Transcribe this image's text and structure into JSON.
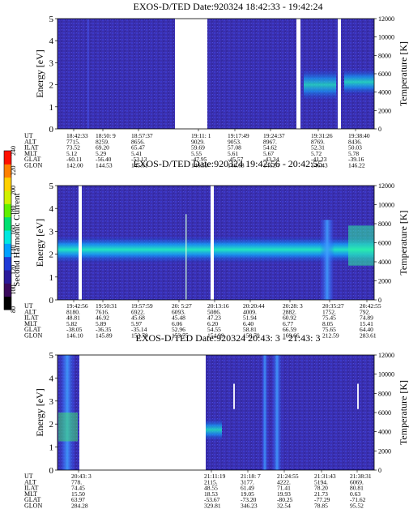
{
  "colorbar": {
    "title": "Second Harmonic Current",
    "ticks": [
      "80",
      "100",
      "120",
      "140",
      "160",
      "180",
      "200",
      "220",
      "240"
    ],
    "colors": [
      "#000000",
      "#3a0a5c",
      "#2a1a9a",
      "#1f3ad6",
      "#00a0ff",
      "#00e8e0",
      "#00e070",
      "#60f000",
      "#d0f000",
      "#ffd000",
      "#ff8000",
      "#ff1000"
    ]
  },
  "panels": [
    {
      "title": "EXOS-D/TED   Date:920324   18:42:33 - 19:42:24",
      "ylabel": "Energy [eV]",
      "y2label": "Temperature [K]",
      "yticks": [
        "0",
        "1",
        "2",
        "3",
        "4",
        "5"
      ],
      "y2ticks": [
        "0",
        "2000",
        "4000",
        "6000",
        "8000",
        "10000",
        "12000"
      ],
      "row_labels": [
        "UT",
        "ALT",
        "ILAT",
        "MLT",
        "GLAT",
        "GLON"
      ],
      "columns": [
        [
          "18:42:33",
          "7715.",
          "73.52",
          "5.12",
          "-60.11",
          "142.00"
        ],
        [
          "18:50: 9",
          "8259.",
          "69.20",
          "5.29",
          "-56.40",
          "144.53"
        ],
        [
          "18:57:37",
          "8656.",
          "65.47",
          "5.41",
          "-53.13",
          "145.61"
        ],
        [
          "19:11: 1",
          "9029.",
          "59.69",
          "5.55",
          "-47.95",
          "146.53"
        ],
        [
          "19:17:49",
          "9053.",
          "57.08",
          "5.61",
          "-45.57",
          "146.63"
        ],
        [
          "19:24:37",
          "8967.",
          "54.62",
          "5.67",
          "-43.34",
          "146.57"
        ],
        [
          "19:31:26",
          "8769.",
          "52.31",
          "5.72",
          "-41.23",
          "146.43"
        ],
        [
          "19:38:40",
          "8436.",
          "50.03",
          "5.78",
          "-39.16",
          "146.22"
        ]
      ]
    },
    {
      "title": "EXOS-D/TED   Date:920324   19:42:56 - 20:42:55",
      "ylabel": "Energy [eV]",
      "y2label": "Temperature [K]",
      "yticks": [
        "0",
        "1",
        "2",
        "3",
        "4",
        "5"
      ],
      "y2ticks": [
        "0",
        "2000",
        "4000",
        "6000",
        "8000",
        "10000",
        "12000"
      ],
      "row_labels": [
        "UT",
        "ALT",
        "ILAT",
        "MLT",
        "GLAT",
        "GLON"
      ],
      "columns": [
        [
          "19:42:56",
          "8180.",
          "48.81",
          "5.82",
          "-38.05",
          "146.10"
        ],
        [
          "19:50:31",
          "7616.",
          "46.92",
          "5.89",
          "-36.35",
          "145.89"
        ],
        [
          "19:57:59",
          "6922.",
          "45.68",
          "5.97",
          "-35.14",
          "153.78"
        ],
        [
          "20: 5:27",
          "6093.",
          "45.48",
          "6.06",
          "52.96",
          "153.75"
        ],
        [
          "20:13:16",
          "5086.",
          "47.23",
          "6.20",
          "54.55",
          "154.99"
        ],
        [
          "20:20:44",
          "4009.",
          "51.94",
          "6.40",
          "58.81",
          "158.79"
        ],
        [
          "20:28: 3",
          "2882.",
          "60.92",
          "6.77",
          "66.59",
          "169.66"
        ],
        [
          "20:35:27",
          "1752.",
          "75.45",
          "8.05",
          "75.65",
          "212.59"
        ],
        [
          "20:42:55",
          "792.",
          "74.89",
          "15.41",
          "64.40",
          "283.61"
        ]
      ]
    },
    {
      "title": "EXOS-D/TED   Date:920324   20:43: 3 - 21:43: 3",
      "ylabel": "Energy [eV]",
      "y2label": "Temperature [K]",
      "yticks": [
        "0",
        "1",
        "2",
        "3",
        "4",
        "5"
      ],
      "y2ticks": [
        "0",
        "2000",
        "4000",
        "6000",
        "8000",
        "10000",
        "12000"
      ],
      "row_labels": [
        "UT",
        "ALT",
        "ILAT",
        "MLT",
        "GLAT",
        "GLON"
      ],
      "columns": [
        [
          "20:43: 3",
          "778.",
          "74.45",
          "15.50",
          "63.97",
          "284.28"
        ],
        [
          "21:11:19",
          "2115.",
          "48.55",
          "18.53",
          "-53.67",
          "329.81"
        ],
        [
          "21:18: 7",
          "3177.",
          "61.49",
          "19.05",
          "-73.20",
          "346.23"
        ],
        [
          "21:24:55",
          "4222.",
          "71.41",
          "19.93",
          "-80.25",
          "32.54"
        ],
        [
          "21:31:43",
          "5194.",
          "78.20",
          "21.73",
          "-77.29",
          "78.85"
        ],
        [
          "21:38:31",
          "6069.",
          "80.81",
          "0.63",
          "-71.62",
          "95.52"
        ]
      ]
    }
  ]
}
